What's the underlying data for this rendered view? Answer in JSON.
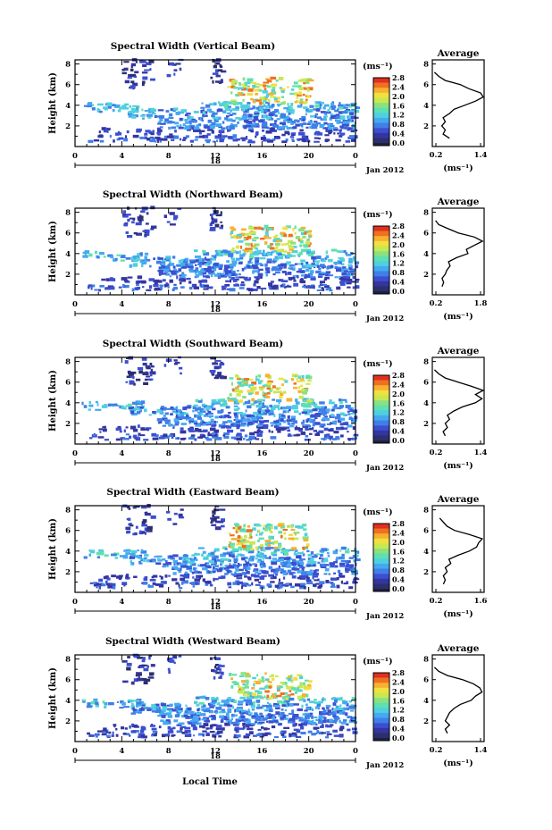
{
  "figure": {
    "x_axis_label": "Local Time",
    "x_ticks": [
      "0",
      "4",
      "8",
      "12",
      "16",
      "20",
      "0"
    ],
    "day_label": "18",
    "month_label": "Jan 2012",
    "y_axis_label": "Height (km)",
    "y_ticks": [
      "2",
      "4",
      "6",
      "8"
    ],
    "colorbar_unit": "(ms⁻¹)",
    "average_unit": "(ms⁻¹)",
    "average_y_ticks": [
      "2",
      "4",
      "6",
      "8"
    ]
  },
  "colors": {
    "palette": [
      "#2b2f6e",
      "#3535a0",
      "#3b4fd0",
      "#3f7fe8",
      "#45a9f0",
      "#4fd0e0",
      "#5ee0b0",
      "#8be080",
      "#c8e850",
      "#f0e040",
      "#f8b030",
      "#f07020",
      "#e03020"
    ],
    "bottom_swatch": "#202040"
  },
  "chart_data": [
    {
      "type": "heatmap",
      "title": "Spectral Width (Vertical Beam)",
      "xlabel": "",
      "ylabel": "Height (km)",
      "xlim": [
        0,
        24
      ],
      "ylim": [
        0,
        8
      ],
      "colorbar": {
        "unit": "(ms⁻¹)",
        "ticks": [
          "0.0",
          "0.4",
          "0.8",
          "1.2",
          "1.6",
          "2.0",
          "2.4",
          "2.8"
        ]
      },
      "average": {
        "title": "Average",
        "xlabel": "(ms⁻¹)",
        "xticks": [
          "0.2",
          "1.4"
        ],
        "xlim": [
          0.2,
          1.4
        ],
        "ylim": [
          0,
          8
        ],
        "heights": [
          0.8,
          1.2,
          1.6,
          2.0,
          2.4,
          2.8,
          3.2,
          3.6,
          4.0,
          4.4,
          4.8,
          5.2,
          5.6,
          6.0,
          6.4,
          6.8,
          7.2
        ],
        "values": [
          0.6,
          0.45,
          0.5,
          0.42,
          0.5,
          0.45,
          0.6,
          0.7,
          0.95,
          1.2,
          1.38,
          1.32,
          1.05,
          0.85,
          0.5,
          0.35,
          0.25
        ]
      }
    },
    {
      "type": "heatmap",
      "title": "Spectral Width (Northward Beam)",
      "xlabel": "",
      "ylabel": "Height (km)",
      "xlim": [
        0,
        24
      ],
      "ylim": [
        0,
        8
      ],
      "colorbar": {
        "unit": "(ms⁻¹)",
        "ticks": [
          "0.0",
          "0.4",
          "0.8",
          "1.2",
          "1.6",
          "2.0",
          "2.4",
          "2.8"
        ]
      },
      "average": {
        "title": "Average",
        "xlabel": "(ms⁻¹)",
        "xticks": [
          "0.2",
          "1.8"
        ],
        "xlim": [
          0.2,
          1.8
        ],
        "ylim": [
          0,
          8
        ],
        "heights": [
          0.8,
          1.2,
          1.6,
          2.0,
          2.4,
          2.8,
          3.2,
          3.6,
          4.0,
          4.4,
          4.8,
          5.2,
          5.6,
          6.0,
          6.4,
          6.8,
          7.2
        ],
        "values": [
          0.5,
          0.55,
          0.5,
          0.6,
          0.65,
          0.75,
          0.7,
          0.95,
          1.3,
          1.25,
          1.5,
          1.75,
          1.5,
          1.0,
          0.7,
          0.4,
          0.3
        ]
      }
    },
    {
      "type": "heatmap",
      "title": "Spectral Width (Southward Beam)",
      "xlabel": "",
      "ylabel": "Height (km)",
      "xlim": [
        0,
        24
      ],
      "ylim": [
        0,
        8
      ],
      "colorbar": {
        "unit": "(ms⁻¹)",
        "ticks": [
          "0.0",
          "0.4",
          "0.8",
          "1.2",
          "1.6",
          "2.0",
          "2.4",
          "2.8"
        ]
      },
      "average": {
        "title": "Average",
        "xlabel": "(ms⁻¹)",
        "xticks": [
          "0.2",
          "1.4"
        ],
        "xlim": [
          0.2,
          1.4
        ],
        "ylim": [
          0,
          8
        ],
        "heights": [
          0.8,
          1.2,
          1.6,
          2.0,
          2.4,
          2.8,
          3.2,
          3.6,
          4.0,
          4.4,
          4.8,
          5.2,
          5.6,
          6.0,
          6.4,
          6.8,
          7.2
        ],
        "values": [
          0.5,
          0.45,
          0.55,
          0.5,
          0.6,
          0.55,
          0.7,
          0.9,
          1.2,
          1.35,
          1.2,
          1.38,
          1.1,
          0.8,
          0.5,
          0.35,
          0.25
        ]
      }
    },
    {
      "type": "heatmap",
      "title": "Spectral Width (Eastward Beam)",
      "xlabel": "",
      "ylabel": "Height (km)",
      "xlim": [
        0,
        24
      ],
      "ylim": [
        0,
        8
      ],
      "colorbar": {
        "unit": "(ms⁻¹)",
        "ticks": [
          "0.0",
          "0.4",
          "0.8",
          "1.2",
          "1.6",
          "2.0",
          "2.4",
          "2.8"
        ]
      },
      "average": {
        "title": "Average",
        "xlabel": "(ms⁻¹)",
        "xticks": [
          "0.2",
          "1.6"
        ],
        "xlim": [
          0.2,
          1.6
        ],
        "ylim": [
          0,
          8
        ],
        "heights": [
          0.8,
          1.2,
          1.6,
          2.0,
          2.4,
          2.8,
          3.2,
          3.6,
          4.0,
          4.4,
          4.8,
          5.2,
          5.6,
          6.0,
          6.4,
          6.8,
          7.2
        ],
        "values": [
          0.5,
          0.55,
          0.5,
          0.6,
          0.55,
          0.7,
          0.65,
          0.9,
          1.2,
          1.4,
          1.45,
          1.55,
          1.2,
          0.8,
          0.6,
          0.5,
          0.4
        ]
      }
    },
    {
      "type": "heatmap",
      "title": "Spectral Width (Westward Beam)",
      "xlabel": "Local Time",
      "ylabel": "Height (km)",
      "xlim": [
        0,
        24
      ],
      "ylim": [
        0,
        8
      ],
      "colorbar": {
        "unit": "(ms⁻¹)",
        "ticks": [
          "0.0",
          "0.4",
          "0.8",
          "1.2",
          "1.6",
          "2.0",
          "2.4",
          "2.8"
        ]
      },
      "average": {
        "title": "Average",
        "xlabel": "(ms⁻¹)",
        "xticks": [
          "0.2",
          "1.4"
        ],
        "xlim": [
          0.2,
          1.4
        ],
        "ylim": [
          0,
          8
        ],
        "heights": [
          0.8,
          1.2,
          1.6,
          2.0,
          2.4,
          2.8,
          3.2,
          3.6,
          4.0,
          4.4,
          4.8,
          5.2,
          5.6,
          6.0,
          6.4,
          6.8,
          7.2
        ],
        "values": [
          0.55,
          0.5,
          0.6,
          0.5,
          0.55,
          0.6,
          0.7,
          0.85,
          1.1,
          1.2,
          1.35,
          1.3,
          1.15,
          0.9,
          0.55,
          0.35,
          0.25
        ]
      }
    }
  ]
}
